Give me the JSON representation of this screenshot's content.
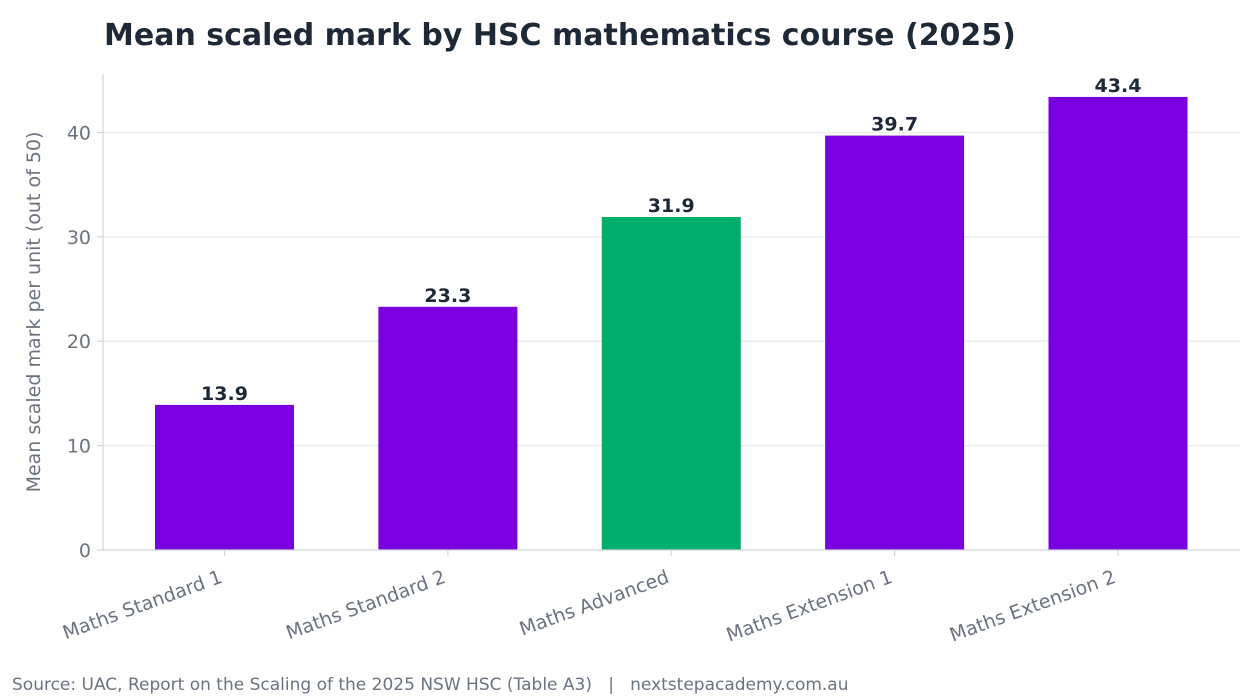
{
  "chart_data": {
    "type": "bar",
    "title": "Mean scaled mark by HSC mathematics course (2025)",
    "xlabel": "",
    "ylabel": "Mean scaled mark per unit (out of 50)",
    "categories": [
      "Maths Standard 1",
      "Maths Standard 2",
      "Maths Advanced",
      "Maths Extension 1",
      "Maths Extension 2"
    ],
    "values": [
      13.9,
      23.3,
      31.9,
      39.7,
      43.4
    ],
    "data_labels": [
      "13.9",
      "23.3",
      "31.9",
      "39.7",
      "43.4"
    ],
    "ylim": [
      0,
      45.6
    ],
    "yticks": [
      0,
      10,
      20,
      30,
      40
    ],
    "grid": "horizontal",
    "highlighted_category": "Maths Advanced",
    "colors": {
      "bar": "#7a00e0",
      "highlight": "#00ae6b",
      "grid": "#ebebeb",
      "axis": "#d0d4da"
    }
  },
  "source": "Source: UAC, Report on the Scaling of the 2025 NSW HSC (Table A3)   |   nextstepacademy.com.au"
}
